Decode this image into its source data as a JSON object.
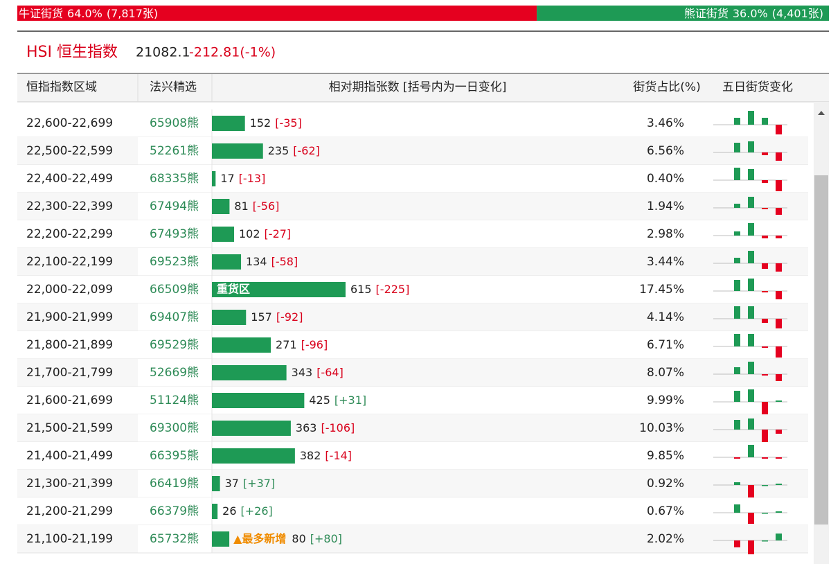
{
  "ratio_bar": {
    "bull": {
      "name": "牛证街货",
      "percent": 64.0,
      "percent_label": "64.0%",
      "count": "(7,817张)"
    },
    "bear": {
      "name": "熊证街货",
      "percent": 36.0,
      "percent_label": "36.0%",
      "count": "(4,401张)"
    }
  },
  "header": {
    "index_name": "HSI 恒生指数",
    "price": "21082.1",
    "change": "-212.81(-1%)"
  },
  "table": {
    "columns": [
      "恒指指数区域",
      "法兴精选",
      "相对期指张数 [括号内为一日变化]",
      "街货占比(%)",
      "五日街货变化"
    ],
    "rows": [
      {
        "range": "22,600-22,699",
        "pick": "65908熊",
        "count": 152,
        "change": "[-35]",
        "share": "3.46%",
        "five_day": [
          10,
          20,
          10,
          -14
        ]
      },
      {
        "range": "22,500-22,599",
        "pick": "52261熊",
        "count": 235,
        "change": "[-62]",
        "share": "6.56%",
        "five_day": [
          14,
          16,
          -4,
          -12
        ]
      },
      {
        "range": "22,400-22,499",
        "pick": "68335熊",
        "count": 17,
        "change": "[-13]",
        "share": "0.40%",
        "five_day": [
          18,
          16,
          -4,
          -16
        ]
      },
      {
        "range": "22,300-22,399",
        "pick": "67494熊",
        "count": 81,
        "change": "[-56]",
        "share": "1.94%",
        "five_day": [
          6,
          16,
          -2,
          -10
        ]
      },
      {
        "range": "22,200-22,299",
        "pick": "67493熊",
        "count": 102,
        "change": "[-27]",
        "share": "2.98%",
        "five_day": [
          6,
          18,
          -4,
          -4
        ]
      },
      {
        "range": "22,100-22,199",
        "pick": "69523熊",
        "count": 134,
        "change": "[-58]",
        "share": "3.44%",
        "five_day": [
          8,
          18,
          -8,
          -12
        ]
      },
      {
        "range": "22,000-22,099",
        "pick": "66509熊",
        "count": 615,
        "change": "[-225]",
        "share": "17.45%",
        "inner_tag": "重货区",
        "five_day": [
          16,
          18,
          -2,
          -12
        ]
      },
      {
        "range": "21,900-21,999",
        "pick": "69407熊",
        "count": 157,
        "change": "[-92]",
        "share": "4.14%",
        "five_day": [
          18,
          18,
          -6,
          -14
        ]
      },
      {
        "range": "21,800-21,899",
        "pick": "69529熊",
        "count": 271,
        "change": "[-96]",
        "share": "6.71%",
        "five_day": [
          18,
          18,
          -2,
          -16
        ]
      },
      {
        "range": "21,700-21,799",
        "pick": "52669熊",
        "count": 343,
        "change": "[-64]",
        "share": "8.07%",
        "five_day": [
          10,
          18,
          -2,
          -10
        ]
      },
      {
        "range": "21,600-21,699",
        "pick": "51124熊",
        "count": 425,
        "change": "[+31]",
        "share": "9.99%",
        "five_day": [
          16,
          18,
          -18,
          2
        ]
      },
      {
        "range": "21,500-21,599",
        "pick": "69300熊",
        "count": 363,
        "change": "[-106]",
        "share": "10.03%",
        "five_day": [
          14,
          16,
          -20,
          -6
        ]
      },
      {
        "range": "21,400-21,499",
        "pick": "66395熊",
        "count": 382,
        "change": "[-14]",
        "share": "9.85%",
        "five_day": [
          -2,
          18,
          -2,
          -2
        ]
      },
      {
        "range": "21,300-21,399",
        "pick": "66419熊",
        "count": 37,
        "change": "[+37]",
        "share": "0.92%",
        "five_day": [
          4,
          -18,
          0,
          2
        ]
      },
      {
        "range": "21,200-21,299",
        "pick": "66379熊",
        "count": 26,
        "change": "[+26]",
        "share": "0.67%",
        "five_day": [
          12,
          -16,
          0,
          2
        ]
      },
      {
        "range": "21,100-21,199",
        "pick": "65732熊",
        "count": 80,
        "change": "[+80]",
        "share": "2.02%",
        "tag": "▲最多新增",
        "five_day": [
          -10,
          -20,
          0,
          10
        ]
      }
    ]
  }
}
